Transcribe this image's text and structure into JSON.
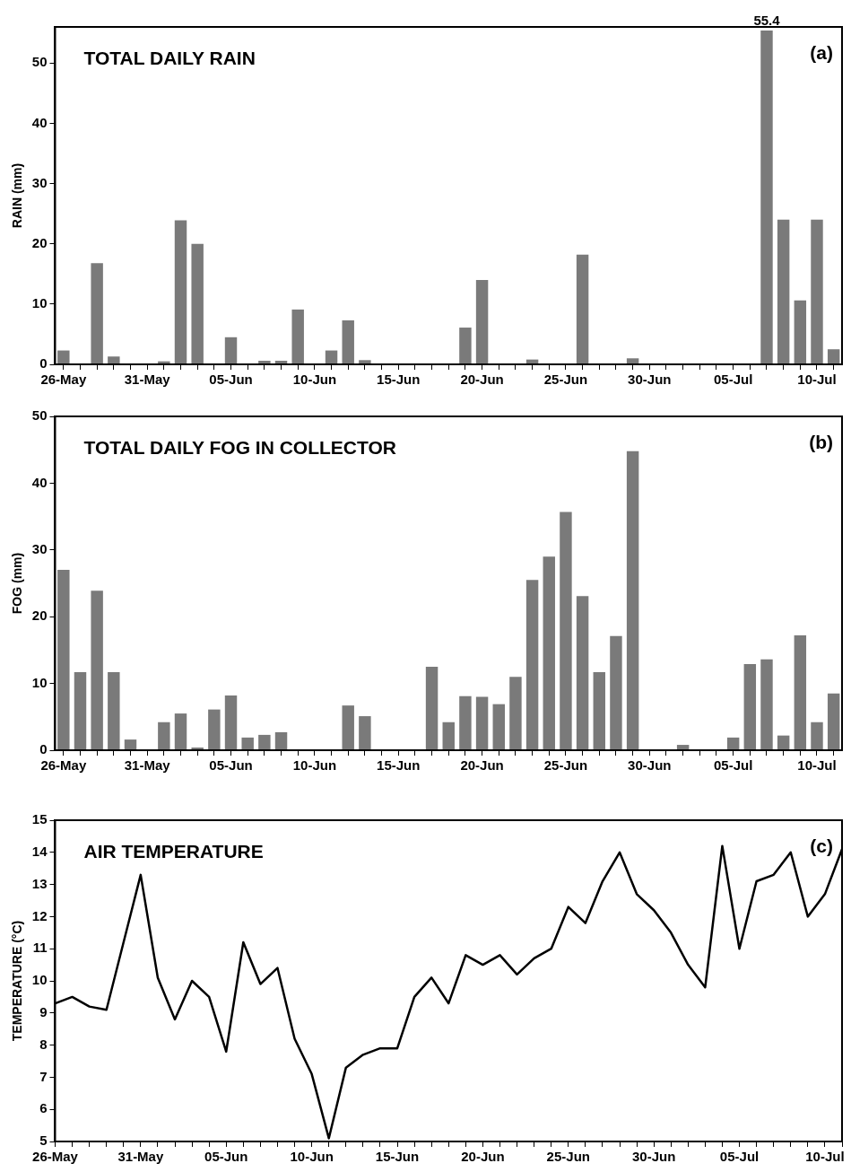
{
  "chart_data": [
    {
      "type": "bar",
      "title": "TOTAL DAILY RAIN",
      "ylabel": "RAIN (mm)",
      "annotations": [
        "(a)"
      ],
      "categories": [
        "26-May",
        null,
        null,
        null,
        null,
        "31-May",
        null,
        null,
        null,
        null,
        "05-Jun",
        null,
        null,
        null,
        null,
        "10-Jun",
        null,
        null,
        null,
        null,
        "15-Jun",
        null,
        null,
        null,
        null,
        "20-Jun",
        null,
        null,
        null,
        null,
        "25-Jun",
        null,
        null,
        null,
        null,
        "30-Jun",
        null,
        null,
        null,
        null,
        "05-Jul",
        null,
        null,
        null,
        null,
        "10-Jul",
        null
      ],
      "values": [
        2.3,
        0,
        16.8,
        1.3,
        0,
        0,
        0.5,
        23.9,
        20.0,
        0,
        4.5,
        0,
        0.6,
        0.6,
        9.1,
        0,
        2.3,
        7.3,
        0.7,
        0,
        0,
        0,
        0,
        0,
        6.1,
        14.0,
        0,
        0,
        0.8,
        0,
        0,
        18.2,
        0,
        0,
        1.0,
        0,
        0,
        0,
        0,
        0,
        0,
        0,
        55.4,
        24.0,
        10.6,
        24.0,
        2.5
      ],
      "value_labels": [
        null,
        null,
        null,
        null,
        null,
        null,
        null,
        null,
        null,
        null,
        null,
        null,
        null,
        null,
        null,
        null,
        null,
        null,
        null,
        null,
        null,
        null,
        null,
        null,
        null,
        null,
        null,
        null,
        null,
        null,
        null,
        null,
        null,
        null,
        null,
        null,
        null,
        null,
        null,
        null,
        null,
        null,
        "55.4",
        null,
        null,
        null,
        null
      ],
      "color": "#7a7a7a",
      "ylim": [
        0,
        56
      ],
      "yticks": [
        0,
        10,
        20,
        30,
        40,
        50
      ]
    },
    {
      "type": "bar",
      "title": "TOTAL DAILY FOG IN COLLECTOR",
      "ylabel": "FOG (mm)",
      "annotations": [
        "(b)"
      ],
      "categories": [
        "26-May",
        null,
        null,
        null,
        null,
        "31-May",
        null,
        null,
        null,
        null,
        "05-Jun",
        null,
        null,
        null,
        null,
        "10-Jun",
        null,
        null,
        null,
        null,
        "15-Jun",
        null,
        null,
        null,
        null,
        "20-Jun",
        null,
        null,
        null,
        null,
        "25-Jun",
        null,
        null,
        null,
        null,
        "30-Jun",
        null,
        null,
        null,
        null,
        "05-Jul",
        null,
        null,
        null,
        null,
        "10-Jul",
        null
      ],
      "values": [
        27.0,
        11.7,
        23.9,
        11.7,
        1.6,
        0,
        4.2,
        5.5,
        0.4,
        6.1,
        8.2,
        1.9,
        2.3,
        2.7,
        0,
        0,
        0,
        6.7,
        5.1,
        0,
        0,
        0,
        12.5,
        4.2,
        8.1,
        8.0,
        6.9,
        11.0,
        25.5,
        29.0,
        35.7,
        23.1,
        11.7,
        17.1,
        44.8,
        0,
        0,
        0.8,
        0,
        0,
        1.9,
        12.9,
        13.6,
        2.2,
        17.2,
        4.2,
        8.5
      ],
      "color": "#7a7a7a",
      "ylim": [
        0,
        50
      ],
      "yticks": [
        0,
        10,
        20,
        30,
        40,
        50
      ]
    },
    {
      "type": "line",
      "title": "AIR TEMPERATURE",
      "ylabel": "TEMPERATURE (°C)",
      "annotations": [
        "(c)"
      ],
      "categories": [
        "26-May",
        null,
        null,
        null,
        null,
        "31-May",
        null,
        null,
        null,
        null,
        "05-Jun",
        null,
        null,
        null,
        null,
        "10-Jun",
        null,
        null,
        null,
        null,
        "15-Jun",
        null,
        null,
        null,
        null,
        "20-Jun",
        null,
        null,
        null,
        null,
        "25-Jun",
        null,
        null,
        null,
        null,
        "30-Jun",
        null,
        null,
        null,
        null,
        "05-Jul",
        null,
        null,
        null,
        null,
        "10-Jul",
        null
      ],
      "values": [
        9.3,
        9.5,
        9.2,
        9.1,
        11.2,
        13.3,
        10.1,
        8.8,
        10.0,
        9.5,
        7.8,
        11.2,
        9.9,
        10.4,
        8.2,
        7.1,
        5.1,
        7.3,
        7.7,
        7.9,
        7.9,
        9.5,
        10.1,
        9.3,
        10.8,
        10.5,
        10.8,
        10.2,
        10.7,
        11.0,
        12.3,
        11.8,
        13.1,
        14.0,
        12.7,
        12.2,
        11.5,
        10.5,
        9.8,
        14.2,
        11.0,
        13.1,
        13.3,
        14.0,
        12.0,
        12.7,
        14.1
      ],
      "color": "#000000",
      "marker": "none",
      "line_style": "solid",
      "ylim": [
        5,
        15
      ],
      "yticks": [
        5,
        6,
        7,
        8,
        9,
        10,
        11,
        12,
        13,
        14,
        15
      ]
    }
  ]
}
